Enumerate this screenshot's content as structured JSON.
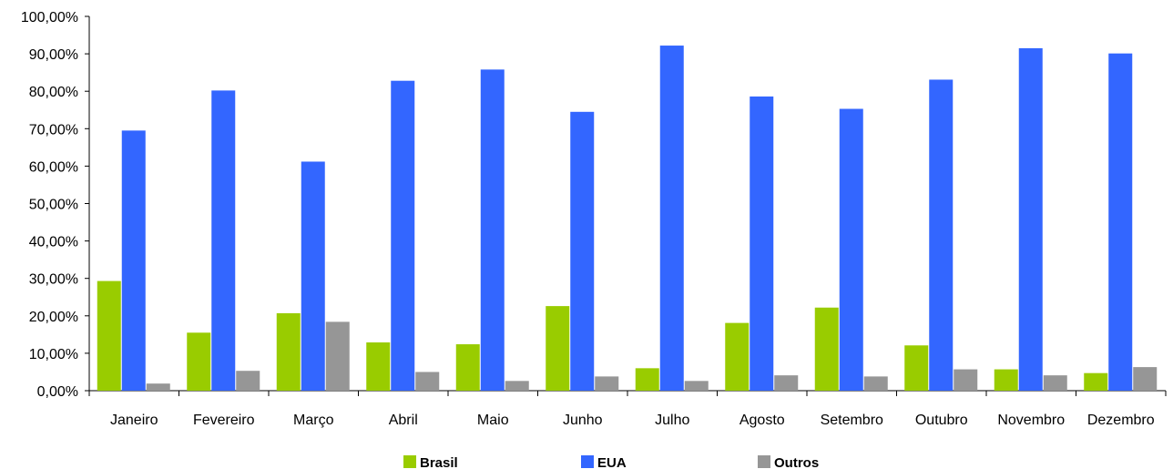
{
  "chart_data": {
    "type": "bar",
    "title": "",
    "xlabel": "",
    "ylabel": "",
    "categories": [
      "Janeiro",
      "Fevereiro",
      "Março",
      "Abril",
      "Maio",
      "Junho",
      "Julho",
      "Agosto",
      "Setembro",
      "Outubro",
      "Novembro",
      "Dezembro"
    ],
    "series": [
      {
        "name": "Brasil",
        "color": "#99cc00",
        "values": [
          29.3,
          15.5,
          20.7,
          12.9,
          12.4,
          22.6,
          6.0,
          18.1,
          22.2,
          12.1,
          5.7,
          4.7
        ]
      },
      {
        "name": "EUA",
        "color": "#3366ff",
        "values": [
          69.5,
          80.2,
          61.2,
          82.8,
          85.8,
          74.5,
          92.2,
          78.6,
          75.3,
          83.1,
          91.5,
          90.1
        ]
      },
      {
        "name": "Outros",
        "color": "#969696",
        "values": [
          1.9,
          5.3,
          18.4,
          5.0,
          2.6,
          3.8,
          2.6,
          4.1,
          3.8,
          5.7,
          4.1,
          6.3
        ]
      }
    ],
    "ylim": [
      0,
      100
    ],
    "yticks": [
      0,
      10,
      20,
      30,
      40,
      50,
      60,
      70,
      80,
      90,
      100
    ],
    "ytick_labels": [
      "0,00%",
      "10,00%",
      "20,00%",
      "30,00%",
      "40,00%",
      "50,00%",
      "60,00%",
      "70,00%",
      "80,00%",
      "90,00%",
      "100,00%"
    ],
    "grid": false,
    "legend_position": "bottom"
  }
}
